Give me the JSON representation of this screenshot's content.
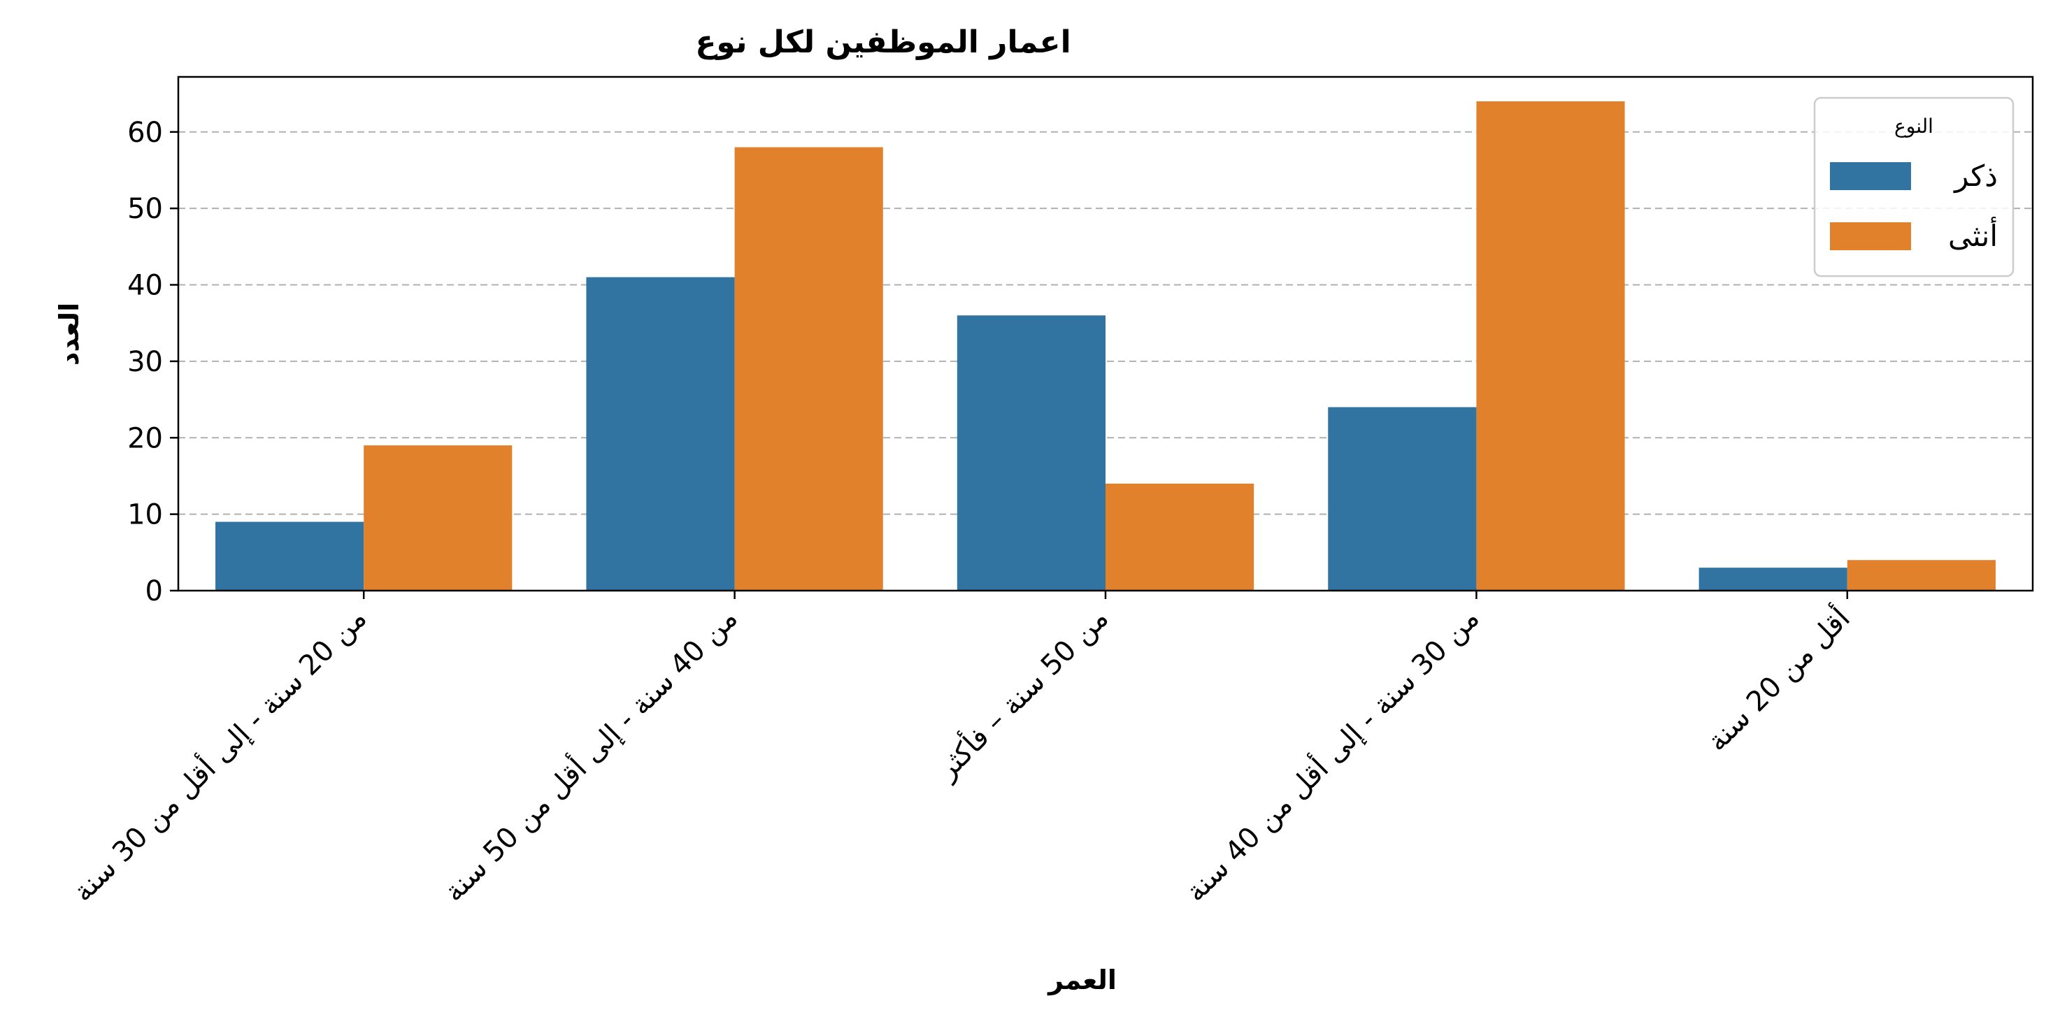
{
  "chart_data": {
    "type": "bar",
    "title": "اعمار الموظفين لكل نوع",
    "xlabel": "العمر",
    "ylabel": "العدد",
    "categories": [
      "من 20 سنة - إلى أقل من 30 سنة",
      "من 40 سنة - إلى أقل من 50 سنة",
      "من 50 سنة – فأكثر",
      "من 30 سنة - إلى أقل من 40 سنة",
      "أقل من 20 سنة"
    ],
    "series": [
      {
        "name": "ذكر",
        "color": "#3274a1",
        "values": [
          9,
          41,
          36,
          24,
          3
        ]
      },
      {
        "name": "أنثى",
        "color": "#e1812c",
        "values": [
          19,
          58,
          14,
          64,
          4
        ]
      }
    ],
    "ylim": [
      0,
      67.2
    ],
    "yticks": [
      0,
      10,
      20,
      30,
      40,
      50,
      60
    ],
    "grid": "y-dashed",
    "legend": {
      "title": "النوع",
      "placement": "top-right"
    }
  }
}
